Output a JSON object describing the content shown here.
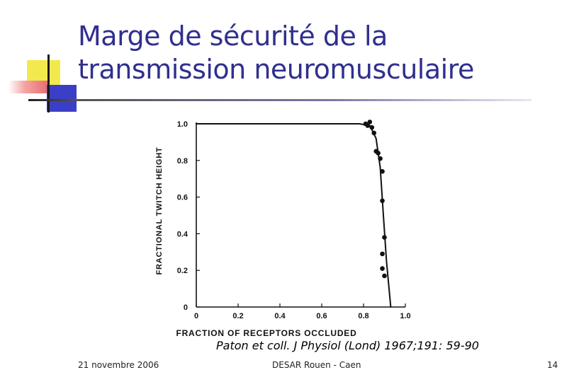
{
  "slide": {
    "title_line1": "Marge de sécurité de la",
    "title_line2": "transmission neuromusculaire",
    "citation": "Paton et coll. J Physiol (Lond) 1967;191: 59-90",
    "footer_date": "21 novembre 2006",
    "footer_center": "DESAR Rouen - Caen",
    "page_number": "14"
  },
  "colors": {
    "title": "#2f2f8f",
    "deco_yellow": "#f2e94e",
    "deco_blue": "#3b3fc7",
    "deco_red": "#e86a6a"
  },
  "chart_data": {
    "type": "scatter",
    "xlabel": "FRACTION OF RECEPTORS OCCLUDED",
    "ylabel": "FRACTIONAL  TWITCH HEIGHT",
    "xlim": [
      0,
      1.0
    ],
    "ylim": [
      0,
      1.0
    ],
    "x_ticks": [
      "0",
      "0.2",
      "0.4",
      "0.6",
      "0.8",
      "1.0"
    ],
    "y_ticks": [
      "0",
      "0.2",
      "0.4",
      "0.6",
      "0.8",
      "1.0"
    ],
    "grid": false,
    "points": [
      {
        "x": 0.81,
        "y": 1.0
      },
      {
        "x": 0.82,
        "y": 0.99
      },
      {
        "x": 0.83,
        "y": 1.01
      },
      {
        "x": 0.84,
        "y": 0.98
      },
      {
        "x": 0.85,
        "y": 0.95
      },
      {
        "x": 0.86,
        "y": 0.85
      },
      {
        "x": 0.87,
        "y": 0.84
      },
      {
        "x": 0.88,
        "y": 0.81
      },
      {
        "x": 0.89,
        "y": 0.74
      },
      {
        "x": 0.89,
        "y": 0.58
      },
      {
        "x": 0.9,
        "y": 0.38
      },
      {
        "x": 0.89,
        "y": 0.29
      },
      {
        "x": 0.89,
        "y": 0.21
      },
      {
        "x": 0.9,
        "y": 0.17
      }
    ],
    "fit_curve": [
      {
        "x": 0.0,
        "y": 1.0
      },
      {
        "x": 0.78,
        "y": 1.0
      },
      {
        "x": 0.83,
        "y": 0.99
      },
      {
        "x": 0.86,
        "y": 0.92
      },
      {
        "x": 0.88,
        "y": 0.76
      },
      {
        "x": 0.895,
        "y": 0.5
      },
      {
        "x": 0.91,
        "y": 0.25
      },
      {
        "x": 0.93,
        "y": 0.0
      }
    ]
  }
}
